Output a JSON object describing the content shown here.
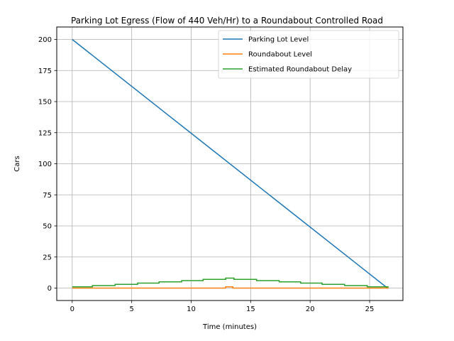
{
  "chart_data": {
    "type": "line",
    "title": "Parking Lot Egress (Flow of 440 Veh/Hr) to a Roundabout Controlled Road",
    "xlabel": "Time (minutes)",
    "ylabel": "Cars",
    "xlim": [
      -1.3,
      27.8
    ],
    "ylim": [
      -10,
      210
    ],
    "xticks": [
      0,
      5,
      10,
      15,
      20,
      25
    ],
    "yticks": [
      0,
      25,
      50,
      75,
      100,
      125,
      150,
      175,
      200
    ],
    "grid": true,
    "legend_position": "top-right",
    "colors": {
      "parking": "#1f77b4",
      "roundabout": "#ff7f0e",
      "delay": "#2ca02c"
    },
    "series": [
      {
        "name": "Parking Lot Level",
        "color": "#1f77b4",
        "step": false,
        "points": [
          [
            0,
            200
          ],
          [
            26.5,
            0
          ]
        ]
      },
      {
        "name": "Roundabout Level",
        "color": "#ff7f0e",
        "step": true,
        "points": [
          [
            0,
            0
          ],
          [
            12.9,
            0
          ],
          [
            12.9,
            1
          ],
          [
            13.5,
            1
          ],
          [
            13.5,
            0
          ],
          [
            26.6,
            0
          ]
        ]
      },
      {
        "name": "Estimated Roundabout Delay",
        "color": "#2ca02c",
        "step": true,
        "points": [
          [
            0,
            1
          ],
          [
            1.7,
            1
          ],
          [
            1.7,
            2
          ],
          [
            3.6,
            2
          ],
          [
            3.6,
            3
          ],
          [
            5.5,
            3
          ],
          [
            5.5,
            4
          ],
          [
            7.3,
            4
          ],
          [
            7.3,
            5
          ],
          [
            9.2,
            5
          ],
          [
            9.2,
            6
          ],
          [
            11.0,
            6
          ],
          [
            11.0,
            7
          ],
          [
            12.9,
            7
          ],
          [
            12.9,
            8
          ],
          [
            13.6,
            8
          ],
          [
            13.6,
            7
          ],
          [
            15.5,
            7
          ],
          [
            15.5,
            6
          ],
          [
            17.4,
            6
          ],
          [
            17.4,
            5
          ],
          [
            19.2,
            5
          ],
          [
            19.2,
            4
          ],
          [
            21.0,
            4
          ],
          [
            21.0,
            3
          ],
          [
            22.9,
            3
          ],
          [
            22.9,
            2
          ],
          [
            24.8,
            2
          ],
          [
            24.8,
            1
          ],
          [
            26.6,
            1
          ]
        ]
      }
    ]
  }
}
